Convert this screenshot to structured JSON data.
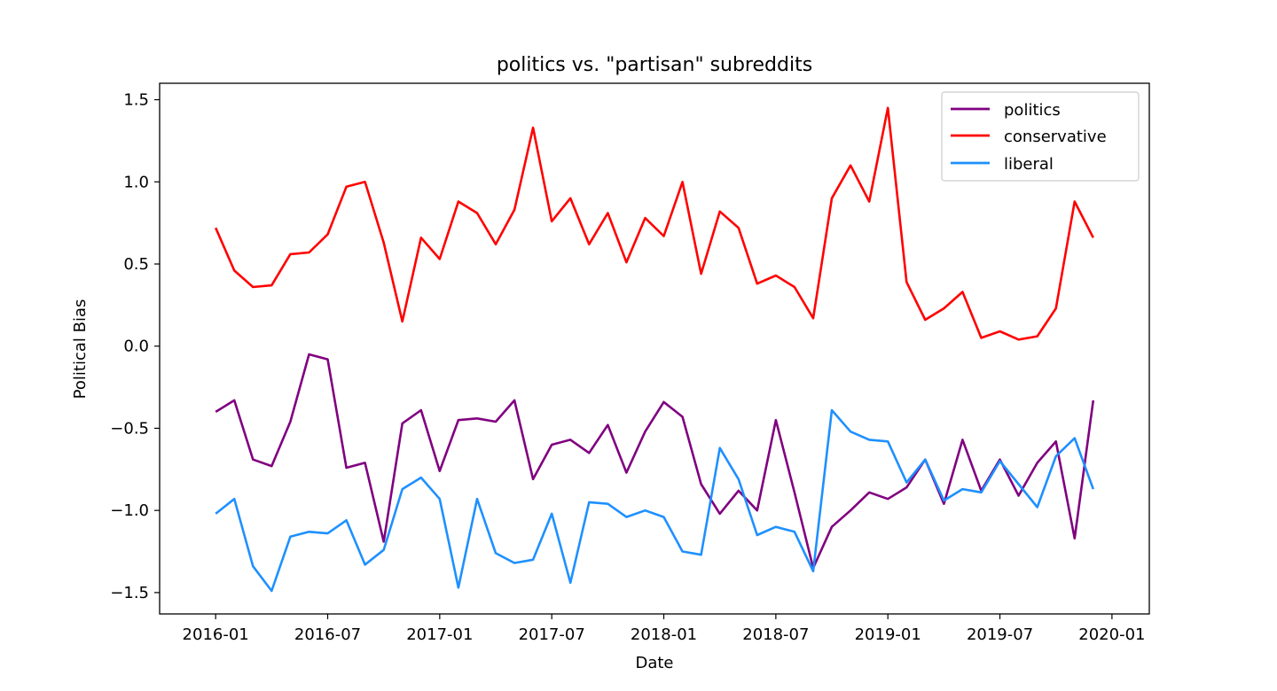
{
  "chart_data": {
    "type": "line",
    "title": "politics vs. \"partisan\" subreddits",
    "xlabel": "Date",
    "ylabel": "Political Bias",
    "x_start": "2016-01",
    "x_step": "1 month",
    "xlim": [
      "2015-10",
      "2020-03"
    ],
    "ylim": [
      -1.63,
      1.6
    ],
    "x_ticks": [
      "2016-01",
      "2016-07",
      "2017-01",
      "2017-07",
      "2018-01",
      "2018-07",
      "2019-01",
      "2019-07",
      "2020-01"
    ],
    "y_ticks": [
      1.5,
      1.0,
      0.5,
      0.0,
      -0.5,
      -1.0,
      -1.5
    ],
    "y_tick_labels": [
      "1.5",
      "1.0",
      "0.5",
      "0.0",
      "−0.5",
      "−1.0",
      "−1.5"
    ],
    "grid": false,
    "legend_position": "top-right",
    "series": [
      {
        "name": "politics",
        "color": "#800080",
        "values": [
          -0.4,
          -0.33,
          -0.69,
          -0.73,
          -0.46,
          -0.05,
          -0.08,
          -0.74,
          -0.71,
          -1.19,
          -0.47,
          -0.39,
          -0.76,
          -0.45,
          -0.44,
          -0.46,
          -0.33,
          -0.81,
          -0.6,
          -0.57,
          -0.65,
          -0.48,
          -0.77,
          -0.52,
          -0.34,
          -0.43,
          -0.84,
          -1.02,
          -0.88,
          -1.0,
          -0.45,
          -0.89,
          -1.35,
          -1.1,
          -1.0,
          -0.89,
          -0.93,
          -0.86,
          -0.69,
          -0.96,
          -0.57,
          -0.88,
          -0.69,
          -0.91,
          -0.71,
          -0.58,
          -1.17,
          -0.33
        ]
      },
      {
        "name": "conservative",
        "color": "#ff0000",
        "values": [
          0.72,
          0.46,
          0.36,
          0.37,
          0.56,
          0.57,
          0.68,
          0.97,
          1.0,
          0.63,
          0.15,
          0.66,
          0.53,
          0.88,
          0.81,
          0.62,
          0.83,
          1.33,
          0.76,
          0.9,
          0.62,
          0.81,
          0.51,
          0.78,
          0.67,
          1.0,
          0.44,
          0.82,
          0.72,
          0.38,
          0.43,
          0.36,
          0.17,
          0.9,
          1.1,
          0.88,
          1.45,
          0.39,
          0.16,
          0.23,
          0.33,
          0.05,
          0.09,
          0.04,
          0.06,
          0.23,
          0.88,
          0.66
        ]
      },
      {
        "name": "liberal",
        "color": "#1e90ff",
        "values": [
          -1.02,
          -0.93,
          -1.34,
          -1.49,
          -1.16,
          -1.13,
          -1.14,
          -1.06,
          -1.33,
          -1.24,
          -0.87,
          -0.8,
          -0.93,
          -1.47,
          -0.93,
          -1.26,
          -1.32,
          -1.3,
          -1.02,
          -1.44,
          -0.95,
          -0.96,
          -1.04,
          -1.0,
          -1.04,
          -1.25,
          -1.27,
          -0.62,
          -0.81,
          -1.15,
          -1.1,
          -1.13,
          -1.37,
          -0.39,
          -0.52,
          -0.57,
          -0.58,
          -0.83,
          -0.69,
          -0.94,
          -0.87,
          -0.89,
          -0.7,
          -0.84,
          -0.98,
          -0.67,
          -0.56,
          -0.87
        ]
      }
    ]
  }
}
